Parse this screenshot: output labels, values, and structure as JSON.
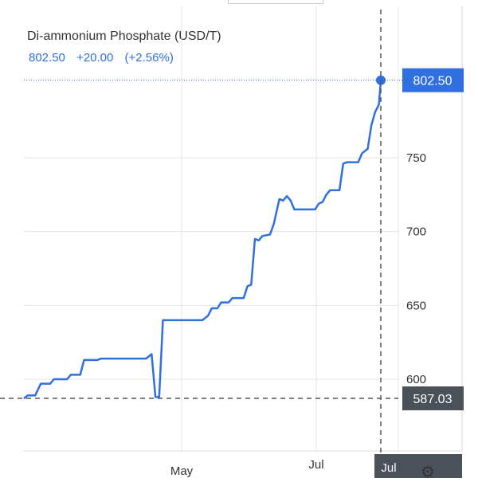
{
  "header": {
    "title": "Di-ammonium Phosphate (USD/T)",
    "price": "802.50",
    "change": "+20.00",
    "change_pct": "(+2.56%)"
  },
  "colors": {
    "line": "#2f6fe0",
    "last_label_bg": "#2f6fe0",
    "low_label_bg": "#4b5159",
    "grid": "#e6e6e6"
  },
  "icons": {
    "settings": "gear-icon"
  },
  "chart_data": {
    "type": "line",
    "title": "Di-ammonium Phosphate (USD/T)",
    "xlabel": "",
    "ylabel": "",
    "x_tick_labels": [
      "May",
      "Jul",
      "Jul"
    ],
    "y_ticks": [
      600,
      650,
      700,
      750
    ],
    "ylim": [
      563,
      834
    ],
    "grid": true,
    "last_value_label": "802.50",
    "crosshair_value_label": "587.03",
    "series": [
      {
        "name": "Di-ammonium Phosphate",
        "points": [
          {
            "x": "2021-02-01",
            "y": 587
          },
          {
            "x": "2021-02-03",
            "y": 589
          },
          {
            "x": "2021-02-07",
            "y": 589
          },
          {
            "x": "2021-02-10",
            "y": 597
          },
          {
            "x": "2021-02-15",
            "y": 597
          },
          {
            "x": "2021-02-17",
            "y": 600
          },
          {
            "x": "2021-02-24",
            "y": 600
          },
          {
            "x": "2021-02-26",
            "y": 603
          },
          {
            "x": "2021-03-03",
            "y": 603
          },
          {
            "x": "2021-03-05",
            "y": 613
          },
          {
            "x": "2021-03-12",
            "y": 613
          },
          {
            "x": "2021-03-14",
            "y": 614
          },
          {
            "x": "2021-04-07",
            "y": 614
          },
          {
            "x": "2021-04-10",
            "y": 617
          },
          {
            "x": "2021-04-12",
            "y": 588
          },
          {
            "x": "2021-04-14",
            "y": 588
          },
          {
            "x": "2021-04-16",
            "y": 640
          },
          {
            "x": "2021-05-07",
            "y": 640
          },
          {
            "x": "2021-05-10",
            "y": 643
          },
          {
            "x": "2021-05-12",
            "y": 648
          },
          {
            "x": "2021-05-15",
            "y": 648
          },
          {
            "x": "2021-05-17",
            "y": 652
          },
          {
            "x": "2021-05-21",
            "y": 652
          },
          {
            "x": "2021-05-23",
            "y": 655
          },
          {
            "x": "2021-05-29",
            "y": 655
          },
          {
            "x": "2021-05-31",
            "y": 663
          },
          {
            "x": "2021-06-02",
            "y": 664
          },
          {
            "x": "2021-06-04",
            "y": 695
          },
          {
            "x": "2021-06-06",
            "y": 694
          },
          {
            "x": "2021-06-08",
            "y": 697
          },
          {
            "x": "2021-06-12",
            "y": 698
          },
          {
            "x": "2021-06-14",
            "y": 705
          },
          {
            "x": "2021-06-17",
            "y": 722
          },
          {
            "x": "2021-06-19",
            "y": 721
          },
          {
            "x": "2021-06-21",
            "y": 724
          },
          {
            "x": "2021-06-23",
            "y": 721
          },
          {
            "x": "2021-06-25",
            "y": 715
          },
          {
            "x": "2021-07-06",
            "y": 715
          },
          {
            "x": "2021-07-08",
            "y": 719
          },
          {
            "x": "2021-07-10",
            "y": 720
          },
          {
            "x": "2021-07-12",
            "y": 725
          },
          {
            "x": "2021-07-14",
            "y": 728
          },
          {
            "x": "2021-07-19",
            "y": 728
          },
          {
            "x": "2021-07-21",
            "y": 746
          },
          {
            "x": "2021-07-23",
            "y": 747
          },
          {
            "x": "2021-07-29",
            "y": 747
          },
          {
            "x": "2021-07-31",
            "y": 753
          },
          {
            "x": "2021-08-03",
            "y": 756
          },
          {
            "x": "2021-08-05",
            "y": 772
          },
          {
            "x": "2021-08-07",
            "y": 781
          },
          {
            "x": "2021-08-09",
            "y": 786
          },
          {
            "x": "2021-08-10",
            "y": 802.5
          }
        ]
      }
    ]
  }
}
